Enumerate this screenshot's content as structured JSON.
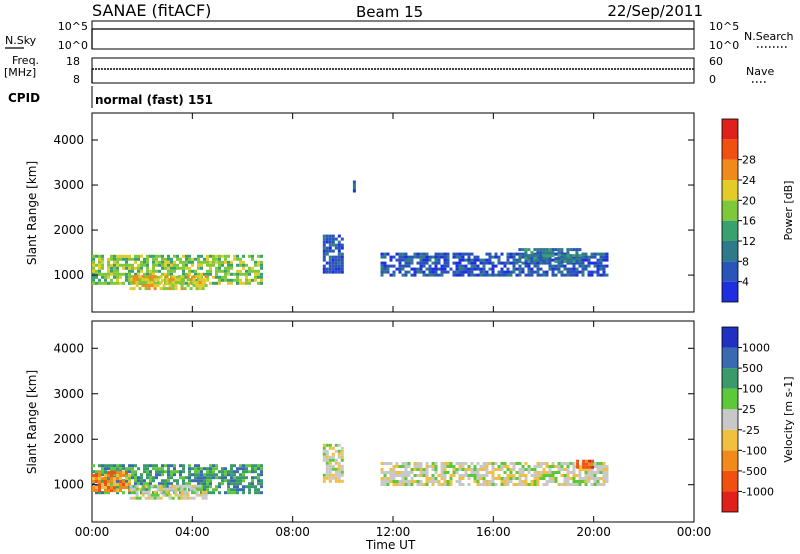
{
  "header": {
    "station": "SANAE (fitACF)",
    "beam": "Beam 15",
    "date": "22/Sep/2011"
  },
  "strips": {
    "nsky_label": "N.Sky",
    "nsky_ticks": [
      "10^5",
      "10^0"
    ],
    "nsearch_label": "N.Search",
    "nsearch_ticks": [
      "10^5",
      "10^0"
    ],
    "freq_label_1": "Freq.",
    "freq_label_2": "[MHz]",
    "freq_ticks": [
      "18",
      "8"
    ],
    "nave_label": "Nave",
    "nave_ticks": [
      "60",
      "0"
    ],
    "cpid_label": "CPID",
    "cpid_value": "normal (fast) 151"
  },
  "x_axis": {
    "label": "Time UT",
    "ticks": [
      "00:00",
      "04:00",
      "08:00",
      "12:00",
      "16:00",
      "20:00",
      "00:00"
    ],
    "tick_hours": [
      0,
      4,
      8,
      12,
      16,
      20,
      24
    ],
    "range_hours": [
      0,
      24
    ]
  },
  "y_axis": {
    "label": "Slant Range [km]",
    "ticks": [
      "1000",
      "2000",
      "3000",
      "4000"
    ],
    "tick_values": [
      1000,
      2000,
      3000,
      4000
    ],
    "range_km": [
      180,
      4600
    ]
  },
  "colors": {
    "power": [
      "#1f2fe0",
      "#2a55b8",
      "#2f7a8a",
      "#3aa070",
      "#7ec83a",
      "#e3cc2a",
      "#f08a1a",
      "#f05010",
      "#e0201a"
    ],
    "velocity": [
      "#e0201a",
      "#f05010",
      "#f08a1a",
      "#f2c040",
      "#c8c8c8",
      "#5cc83a",
      "#3a9a6a",
      "#3a6ab0",
      "#2030c0"
    ]
  },
  "chart_data": [
    {
      "type": "heatmap",
      "panel": "power",
      "xlabel": "Time UT",
      "ylabel": "Slant Range [km]",
      "xlim": [
        0,
        24
      ],
      "ylim": [
        180,
        4600
      ],
      "colorbar": {
        "label": "Power [dB]",
        "ticks": [
          "4",
          "8",
          "12",
          "16",
          "20",
          "24",
          "28"
        ]
      },
      "regions": [
        {
          "t0": 0.0,
          "t1": 6.8,
          "r0": 800,
          "r1": 1450,
          "level": 4
        },
        {
          "t0": 1.5,
          "t1": 4.5,
          "r0": 700,
          "r1": 1000,
          "level": 5
        },
        {
          "t0": 9.2,
          "t1": 10.0,
          "r0": 1100,
          "r1": 1900,
          "level": 1
        },
        {
          "t0": 10.4,
          "t1": 10.5,
          "r0": 2800,
          "r1": 3100,
          "level": 1
        },
        {
          "t0": 11.5,
          "t1": 20.5,
          "r0": 1000,
          "r1": 1500,
          "level": 1
        },
        {
          "t0": 17.0,
          "t1": 19.5,
          "r0": 1300,
          "r1": 1600,
          "level": 2
        }
      ]
    },
    {
      "type": "heatmap",
      "panel": "velocity",
      "xlabel": "Time UT",
      "ylabel": "Slant Range [km]",
      "xlim": [
        0,
        24
      ],
      "ylim": [
        180,
        4600
      ],
      "colorbar": {
        "label": "Velocity [m s-1]",
        "ticks": [
          "1000",
          "500",
          "100",
          "25",
          "-25",
          "-100",
          "-500",
          "-1000"
        ]
      },
      "regions": [
        {
          "t0": 0.0,
          "t1": 6.8,
          "r0": 800,
          "r1": 1450,
          "level": 6
        },
        {
          "t0": 0.0,
          "t1": 1.5,
          "r0": 900,
          "r1": 1300,
          "level": 2
        },
        {
          "t0": 1.5,
          "t1": 4.5,
          "r0": 700,
          "r1": 1000,
          "level": 4
        },
        {
          "t0": 9.2,
          "t1": 10.0,
          "r0": 1100,
          "r1": 1900,
          "level": 4
        },
        {
          "t0": 11.5,
          "t1": 20.5,
          "r0": 1000,
          "r1": 1500,
          "level": 4
        },
        {
          "t0": 19.3,
          "t1": 20.0,
          "r0": 1400,
          "r1": 1550,
          "level": 1
        }
      ]
    }
  ]
}
